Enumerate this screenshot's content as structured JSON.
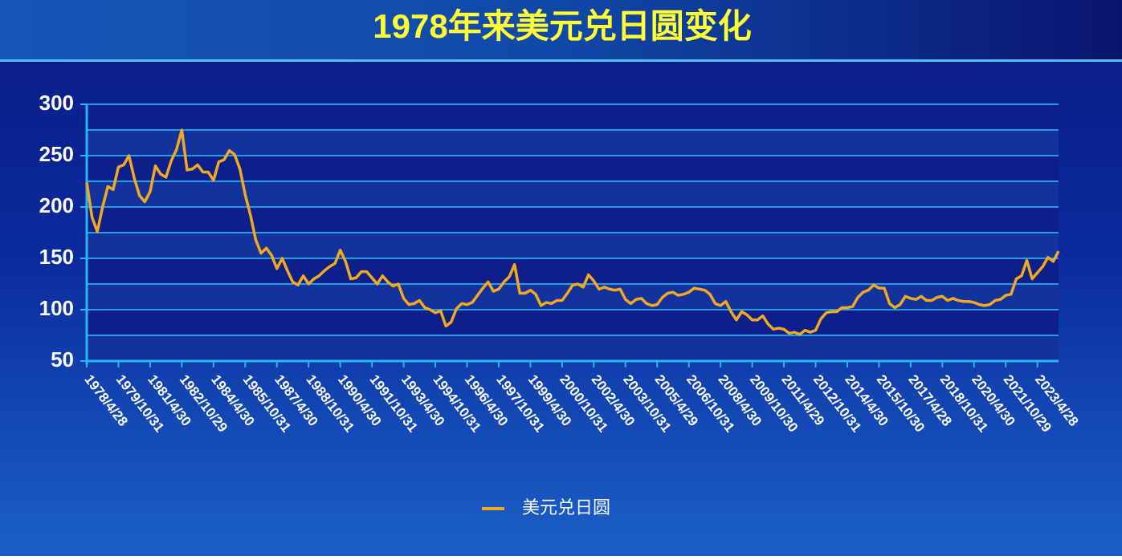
{
  "chart_data": {
    "type": "line",
    "title": "1978年来美元兑日圆变化",
    "categories": [
      "1978/4/28",
      null,
      null,
      null,
      null,
      null,
      "1979/10/31",
      null,
      null,
      null,
      null,
      null,
      "1981/4/30",
      null,
      null,
      null,
      null,
      null,
      "1982/10/29",
      null,
      null,
      null,
      null,
      null,
      "1984/4/30",
      null,
      null,
      null,
      null,
      null,
      "1985/10/31",
      null,
      null,
      null,
      null,
      null,
      "1987/4/30",
      null,
      null,
      null,
      null,
      null,
      "1988/10/31",
      null,
      null,
      null,
      null,
      null,
      "1990/4/30",
      null,
      null,
      null,
      null,
      null,
      "1991/10/31",
      null,
      null,
      null,
      null,
      null,
      "1993/4/30",
      null,
      null,
      null,
      null,
      null,
      "1994/10/31",
      null,
      null,
      null,
      null,
      null,
      "1996/4/30",
      null,
      null,
      null,
      null,
      null,
      "1997/10/31",
      null,
      null,
      null,
      null,
      null,
      "1999/4/30",
      null,
      null,
      null,
      null,
      null,
      "2000/10/31",
      null,
      null,
      null,
      null,
      null,
      "2002/4/30",
      null,
      null,
      null,
      null,
      null,
      "2003/10/31",
      null,
      null,
      null,
      null,
      null,
      "2005/4/29",
      null,
      null,
      null,
      null,
      null,
      "2006/10/31",
      null,
      null,
      null,
      null,
      null,
      "2008/4/30",
      null,
      null,
      null,
      null,
      null,
      "2009/10/30",
      null,
      null,
      null,
      null,
      null,
      "2011/4/29",
      null,
      null,
      null,
      null,
      null,
      "2012/10/31",
      null,
      null,
      null,
      null,
      null,
      "2014/4/30",
      null,
      null,
      null,
      null,
      null,
      "2015/10/30",
      null,
      null,
      null,
      null,
      null,
      "2017/4/28",
      null,
      null,
      null,
      null,
      null,
      "2018/10/31",
      null,
      null,
      null,
      null,
      null,
      "2020/4/30",
      null,
      null,
      null,
      null,
      null,
      "2021/10/29",
      null,
      null,
      null,
      null,
      null,
      "2023/4/28",
      null,
      null,
      null,
      null
    ],
    "series": [
      {
        "name": "美元兑日圆",
        "color": "#f2a91e",
        "values": [
          224,
          190,
          176,
          200,
          220,
          217,
          239,
          241,
          250,
          228,
          211,
          205,
          215,
          240,
          232,
          229,
          245,
          256,
          275,
          236,
          237,
          241,
          234,
          234,
          226,
          244,
          246,
          255,
          251,
          237,
          212,
          192,
          168,
          155,
          160,
          153,
          140,
          150,
          138,
          127,
          124,
          133,
          125,
          130,
          133,
          138,
          142,
          145,
          158,
          147,
          130,
          131,
          137,
          137,
          131,
          125,
          133,
          127,
          123,
          125,
          111,
          105,
          106,
          109,
          102,
          100,
          97,
          99,
          84,
          88,
          101,
          106,
          105,
          107,
          114,
          121,
          127,
          118,
          120,
          127,
          132,
          144,
          116,
          116,
          119,
          115,
          104,
          107,
          106,
          109,
          109,
          116,
          124,
          125,
          122,
          134,
          128,
          120,
          122,
          120,
          119,
          120,
          110,
          106,
          110,
          111,
          106,
          104,
          105,
          112,
          116,
          117,
          114,
          115,
          117,
          121,
          120,
          119,
          115,
          106,
          104,
          108,
          98,
          90,
          98,
          95,
          90,
          90,
          94,
          86,
          81,
          82,
          81,
          77,
          78,
          76,
          80,
          78,
          80,
          91,
          97,
          98,
          98,
          102,
          102,
          103,
          112,
          117,
          119,
          124,
          121,
          121,
          106,
          102,
          105,
          113,
          111,
          110,
          113,
          109,
          109,
          112,
          113,
          109,
          111,
          109,
          108,
          108,
          107,
          105,
          104,
          105,
          109,
          110,
          114,
          115,
          130,
          133,
          148,
          130,
          136,
          142,
          151,
          147,
          157
        ]
      }
    ],
    "ylim": [
      50,
      300
    ],
    "yticks": [
      50,
      100,
      150,
      200,
      250,
      300
    ],
    "minor_yticks": [
      75,
      125,
      175,
      225,
      275
    ],
    "grid": true,
    "legend": "bottom"
  }
}
